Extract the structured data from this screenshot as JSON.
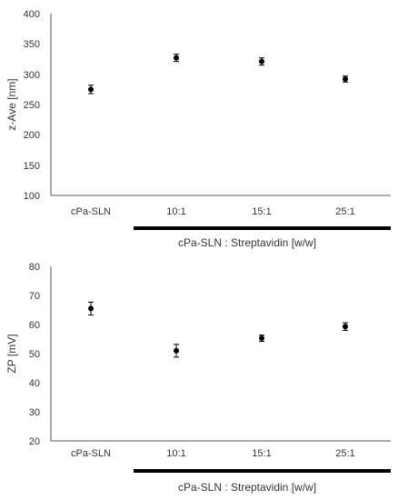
{
  "chart_data": [
    {
      "type": "scatter",
      "categories": [
        "cPa-SLN",
        "10:1",
        "15:1",
        "25:1"
      ],
      "values": [
        275,
        327,
        321,
        292
      ],
      "errors": [
        7,
        6,
        6,
        5
      ],
      "ylabel": "z-Ave [nm]",
      "ylim": [
        100,
        400
      ],
      "yticks": [
        "100",
        "150",
        "200",
        "250",
        "300",
        "350",
        "400"
      ],
      "group_label": "cPa-SLN : Streptavidin [w/w]",
      "grid": false
    },
    {
      "type": "scatter",
      "categories": [
        "cPa-SLN",
        "10:1",
        "15:1",
        "25:1"
      ],
      "values": [
        65.5,
        51,
        55.3,
        59.3
      ],
      "errors": [
        2.2,
        2.2,
        1.1,
        1.3
      ],
      "ylabel": "ZP [mV]",
      "ylim": [
        20,
        80
      ],
      "yticks": [
        "20",
        "30",
        "40",
        "50",
        "60",
        "70",
        "80"
      ],
      "group_label": "cPa-SLN : Streptavidin [w/w]",
      "grid": false
    }
  ]
}
